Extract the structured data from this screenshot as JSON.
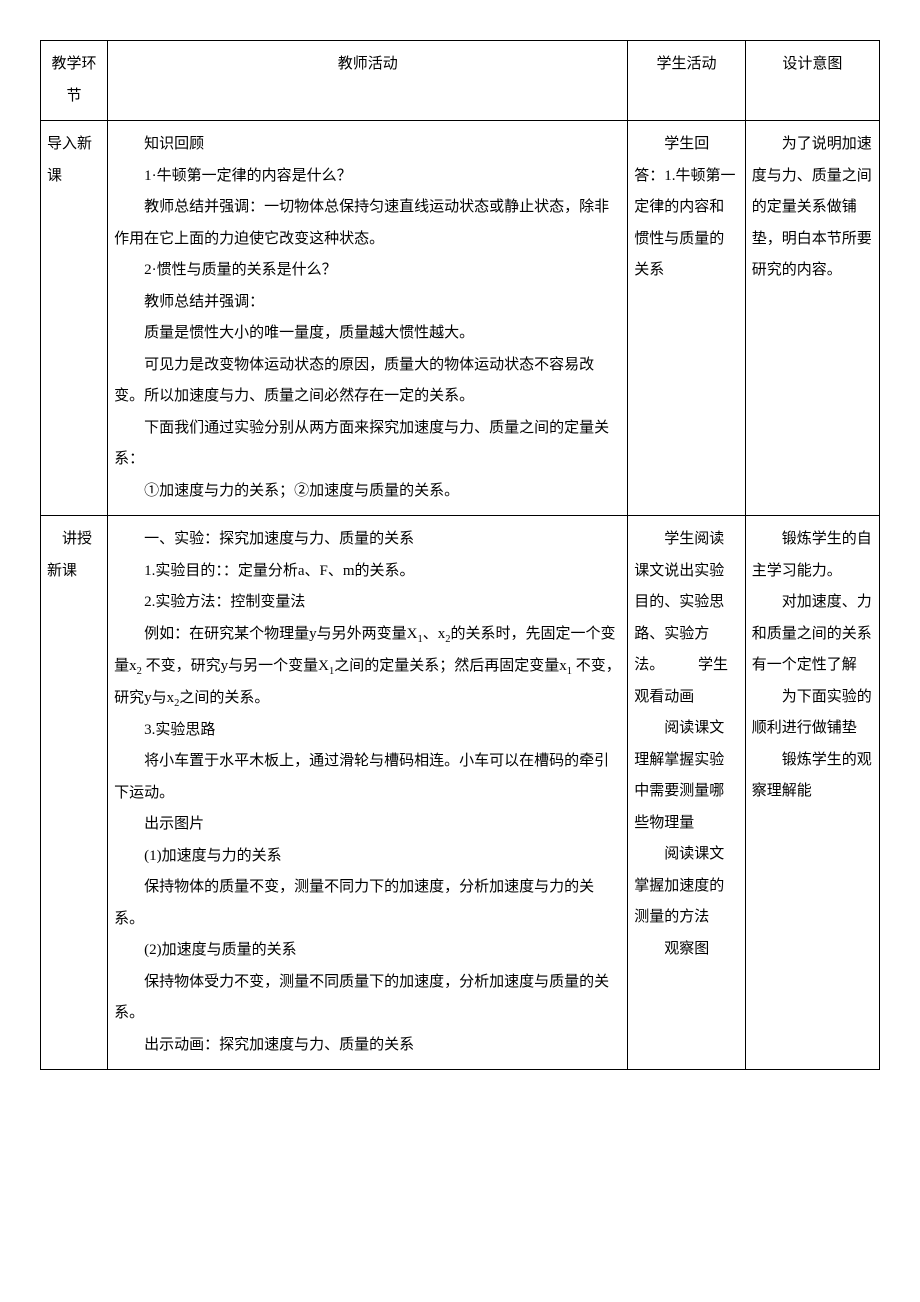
{
  "table": {
    "headers": {
      "col1": "教学环节",
      "col2": "教师活动",
      "col3": "学生活动",
      "col4": "设计意图"
    },
    "rows": [
      {
        "stage": "导入新课",
        "teacher_lines": [
          {
            "cls": "indent",
            "text": "知识回顾"
          },
          {
            "cls": "indent",
            "text": "1·牛顿第一定律的内容是什么？"
          },
          {
            "cls": "indent",
            "text": "教师总结并强调：一切物体总保持匀速直线运动状态或静止状态，除非作用在它上面的力迫使它改变这种状态。"
          },
          {
            "cls": "indent",
            "text": "2·惯性与质量的关系是什么？"
          },
          {
            "cls": "indent",
            "text": "教师总结并强调："
          },
          {
            "cls": "indent",
            "text": "质量是惯性大小的唯一量度，质量越大惯性越大。"
          },
          {
            "cls": "indent",
            "text": "可见力是改变物体运动状态的原因，质量大的物体运动状态不容易改变。所以加速度与力、质量之间必然存在一定的关系。"
          },
          {
            "cls": "indent",
            "text": "下面我们通过实验分别从两方面来探究加速度与力、质量之间的定量关系："
          },
          {
            "cls": "indent",
            "text": "①加速度与力的关系；②加速度与质量的关系。"
          }
        ],
        "student": "　　学生回答：1.牛顿第一定律的内容和惯性与质量的关系",
        "design": "　　为了说明加速度与力、质量之间的定量关系做铺垫，明白本节所要研究的内容。"
      },
      {
        "stage": "　讲授新课",
        "teacher_lines": [
          {
            "cls": "indent",
            "text": "一、实验：探究加速度与力、质量的关系"
          },
          {
            "cls": "indent",
            "text": "1.实验目的：：定量分析a、F、m的关系。"
          },
          {
            "cls": "indent",
            "text": "2.实验方法：控制变量法"
          },
          {
            "cls": "indent",
            "html": "例如：在研究某个物理量y与另外两变量X<sub>1</sub>、x<sub>2</sub>的关系时，先固定一个变量x<sub>2</sub> 不变，研究y与另一个变量X<sub>1</sub>之间的定量关系；然后再固定变量x<sub>1</sub> 不变，研究y与x<sub>2</sub>之间的关系。"
          },
          {
            "cls": "indent",
            "text": "3.实验思路"
          },
          {
            "cls": "indent",
            "text": "将小车置于水平木板上，通过滑轮与槽码相连。小车可以在槽码的牵引下运动。"
          },
          {
            "cls": "indent",
            "text": "出示图片"
          },
          {
            "cls": "indent",
            "text": "(1)加速度与力的关系"
          },
          {
            "cls": "indent",
            "text": "保持物体的质量不变，测量不同力下的加速度，分析加速度与力的关系。"
          },
          {
            "cls": "indent",
            "text": "(2)加速度与质量的关系"
          },
          {
            "cls": "indent",
            "text": "保持物体受力不变，测量不同质量下的加速度，分析加速度与质量的关系。"
          },
          {
            "cls": "indent",
            "text": "出示动画：探究加速度与力、质量的关系"
          }
        ],
        "student": "　　学生阅读课文说出实验目的、实验思路、实验方法。\n　　学生观看动画\n　　阅读课文理解掌握实验中需要测量哪些物理量\n　　阅读课文掌握加速度的测量的方法\n　　观察图",
        "design": "　　锻炼学生的自主学习能力。\n　　对加速度、力和质量之间的关系有一个定性了解\n　　为下面实验的顺利进行做铺垫\n　　锻炼学生的观察理解能"
      }
    ]
  }
}
